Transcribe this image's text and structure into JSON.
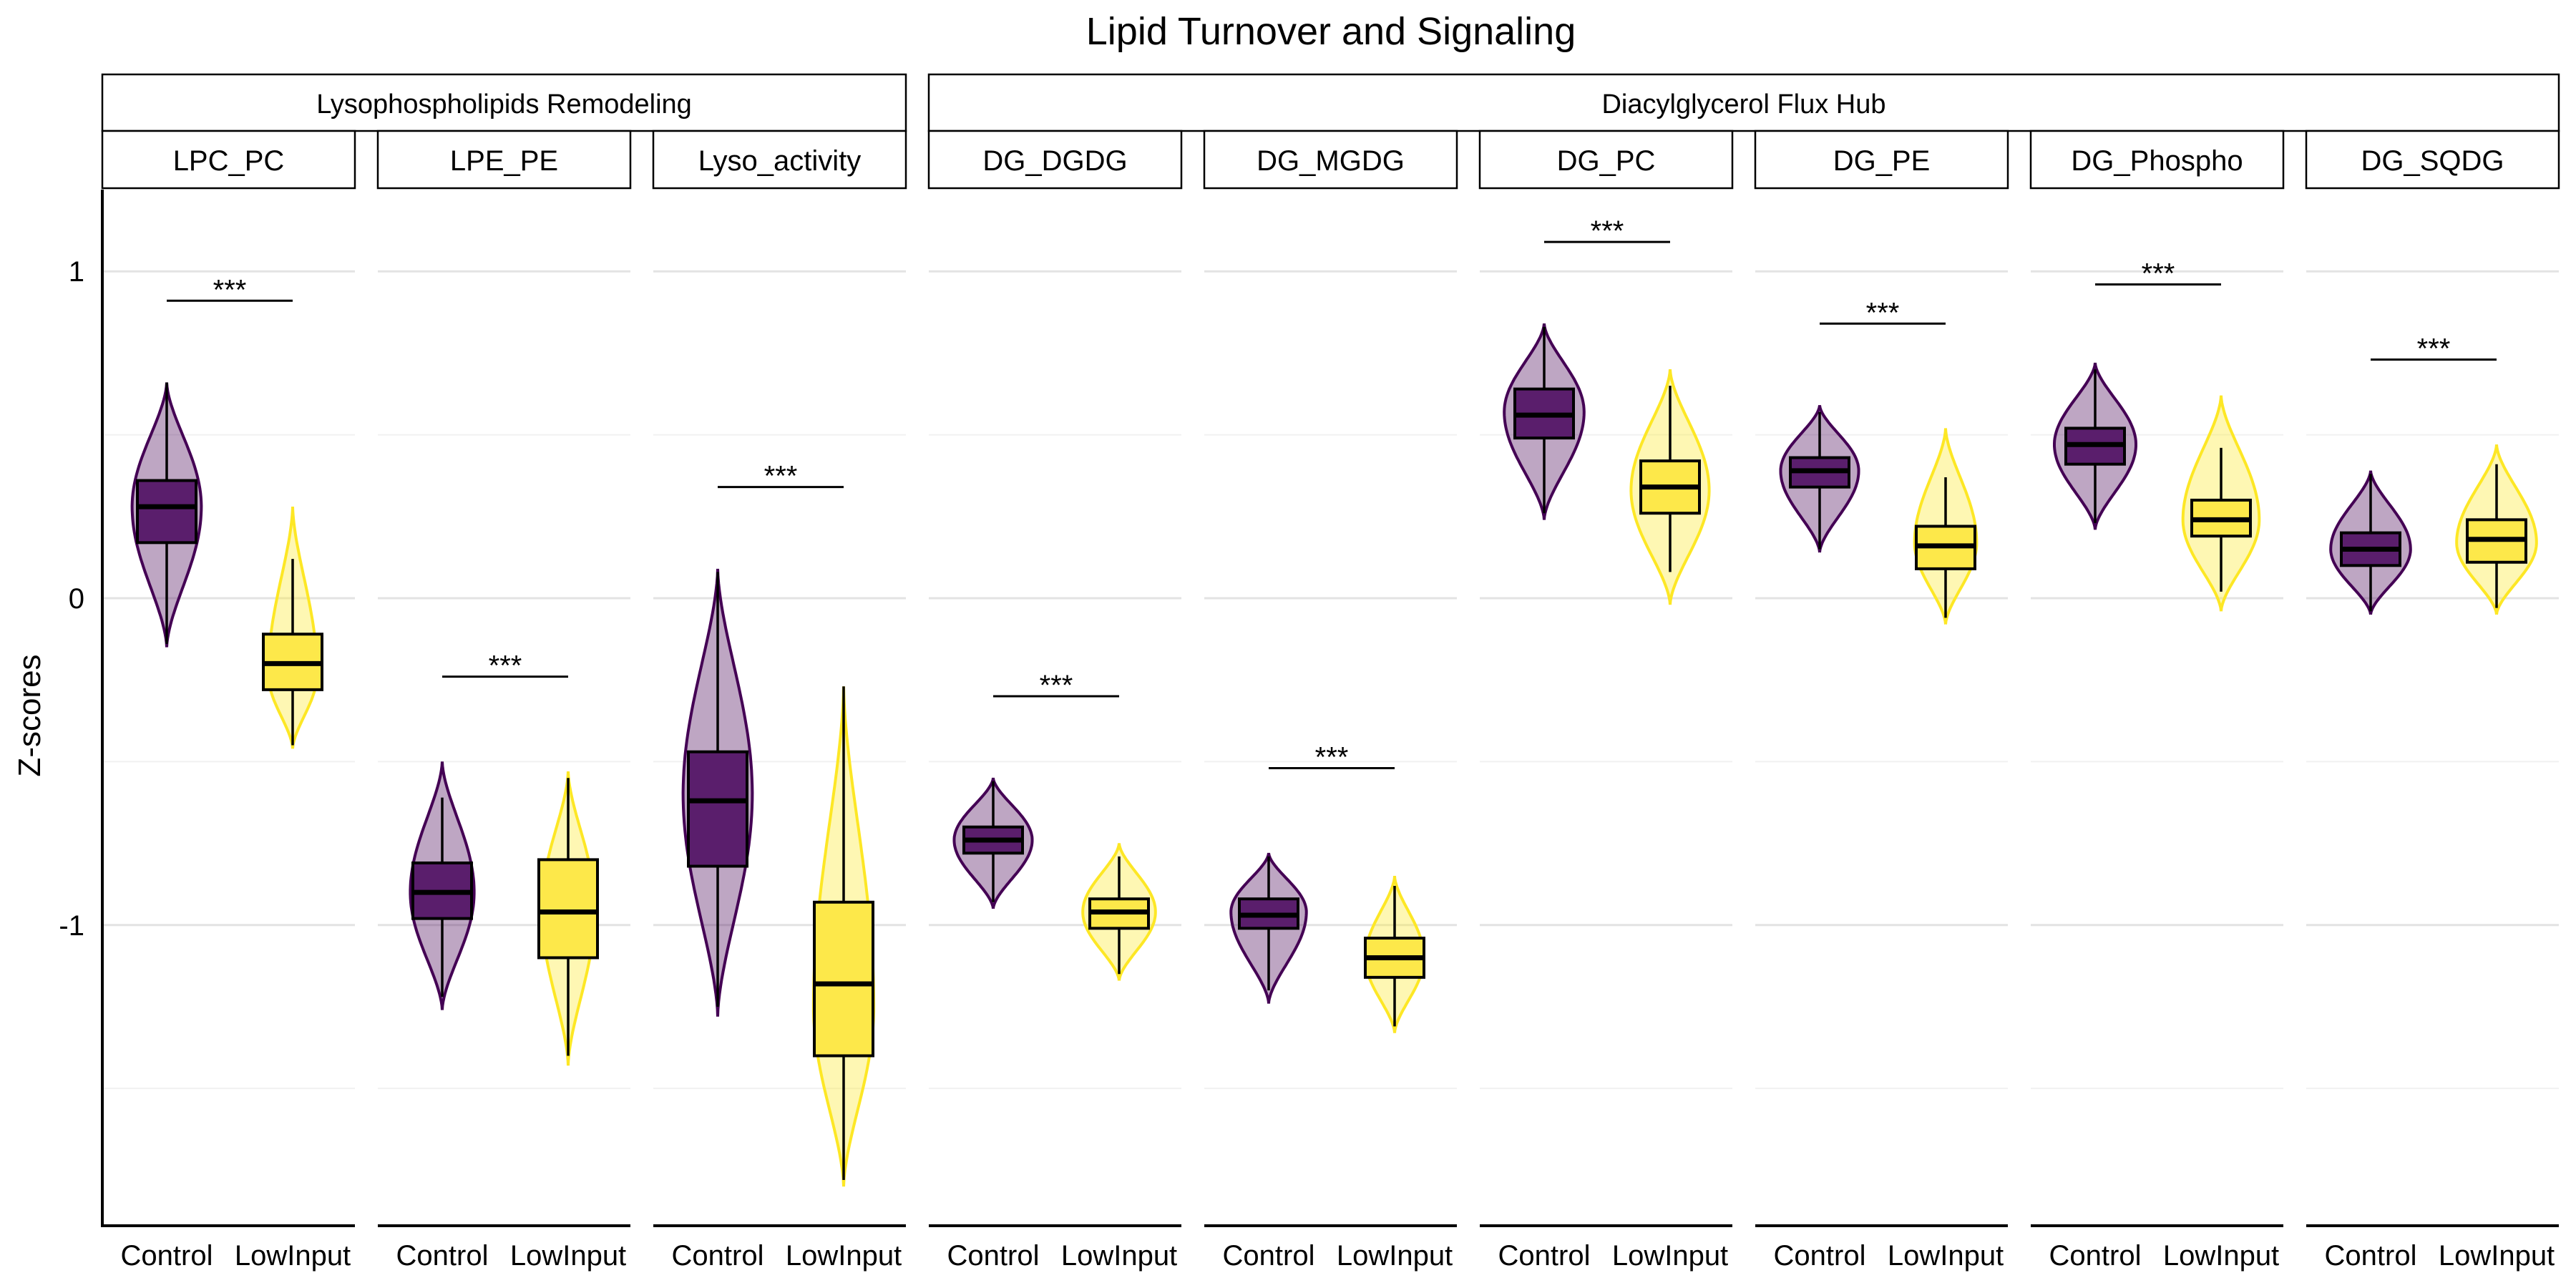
{
  "chart_data": {
    "type": "violin-box",
    "title": "Lipid Turnover and Signaling",
    "ylabel": "Z-scores",
    "xlabel": "",
    "ylim": [
      -1.92,
      1.25
    ],
    "y_ticks": [
      1,
      0,
      -1
    ],
    "y_tick_labels": [
      "1",
      "0",
      "-1"
    ],
    "groups": [
      "Control",
      "LowInput"
    ],
    "colors": {
      "Control": "#440154",
      "LowInput": "#FDE725"
    },
    "box_fill": {
      "Control": "#5A1E6C",
      "LowInput": "#FDE84A"
    },
    "significance_label": "***",
    "strips": [
      {
        "label": "Lysophospholipids Remodeling",
        "facets": [
          0,
          2
        ]
      },
      {
        "label": "Diacylglycerol Flux Hub",
        "facets": [
          3,
          8
        ]
      }
    ],
    "facets": [
      {
        "name": "LPC_PC",
        "sig_y": 0.91,
        "groups": [
          {
            "group": "Control",
            "min": -0.14,
            "q1": 0.17,
            "median": 0.28,
            "q3": 0.36,
            "max": 0.66,
            "vmin": -0.15,
            "vmax": 0.66,
            "peak": 0.28,
            "width": 0.78
          },
          {
            "group": "LowInput",
            "min": -0.45,
            "q1": -0.28,
            "median": -0.2,
            "q3": -0.11,
            "max": 0.12,
            "vmin": -0.46,
            "vmax": 0.28,
            "peak": -0.23,
            "width": 0.55
          }
        ]
      },
      {
        "name": "LPE_PE",
        "sig_y": -0.24,
        "groups": [
          {
            "group": "Control",
            "min": -1.22,
            "q1": -0.98,
            "median": -0.9,
            "q3": -0.81,
            "max": -0.61,
            "vmin": -1.26,
            "vmax": -0.5,
            "peak": -0.9,
            "width": 0.72
          },
          {
            "group": "LowInput",
            "min": -1.4,
            "q1": -1.1,
            "median": -0.96,
            "q3": -0.8,
            "max": -0.55,
            "vmin": -1.43,
            "vmax": -0.53,
            "peak": -0.95,
            "width": 0.6
          }
        ]
      },
      {
        "name": "Lyso_activity",
        "sig_y": 0.34,
        "groups": [
          {
            "group": "Control",
            "min": -1.25,
            "q1": -0.82,
            "median": -0.62,
            "q3": -0.47,
            "max": 0.08,
            "vmin": -1.28,
            "vmax": 0.09,
            "peak": -0.6,
            "width": 0.78
          },
          {
            "group": "LowInput",
            "min": -1.78,
            "q1": -1.4,
            "median": -1.18,
            "q3": -0.93,
            "max": -0.27,
            "vmin": -1.8,
            "vmax": -0.27,
            "peak": -1.25,
            "width": 0.68
          }
        ]
      },
      {
        "name": "DG_DGDG",
        "sig_y": -0.3,
        "groups": [
          {
            "group": "Control",
            "min": -0.93,
            "q1": -0.78,
            "median": -0.74,
            "q3": -0.7,
            "max": -0.56,
            "vmin": -0.95,
            "vmax": -0.55,
            "peak": -0.74,
            "width": 0.88
          },
          {
            "group": "LowInput",
            "min": -1.15,
            "q1": -1.01,
            "median": -0.96,
            "q3": -0.92,
            "max": -0.79,
            "vmin": -1.17,
            "vmax": -0.75,
            "peak": -0.96,
            "width": 0.82
          }
        ]
      },
      {
        "name": "DG_MGDG",
        "sig_y": -0.52,
        "groups": [
          {
            "group": "Control",
            "min": -1.2,
            "q1": -1.01,
            "median": -0.97,
            "q3": -0.92,
            "max": -0.79,
            "vmin": -1.24,
            "vmax": -0.78,
            "peak": -0.96,
            "width": 0.85
          },
          {
            "group": "LowInput",
            "min": -1.31,
            "q1": -1.16,
            "median": -1.1,
            "q3": -1.04,
            "max": -0.88,
            "vmin": -1.33,
            "vmax": -0.85,
            "peak": -1.1,
            "width": 0.66
          }
        ]
      },
      {
        "name": "DG_PC",
        "sig_y": 1.09,
        "groups": [
          {
            "group": "Control",
            "min": 0.26,
            "q1": 0.49,
            "median": 0.56,
            "q3": 0.64,
            "max": 0.83,
            "vmin": 0.24,
            "vmax": 0.84,
            "peak": 0.57,
            "width": 0.9
          },
          {
            "group": "LowInput",
            "min": 0.08,
            "q1": 0.26,
            "median": 0.34,
            "q3": 0.42,
            "max": 0.65,
            "vmin": -0.02,
            "vmax": 0.7,
            "peak": 0.33,
            "width": 0.88
          }
        ]
      },
      {
        "name": "DG_PE",
        "sig_y": 0.84,
        "groups": [
          {
            "group": "Control",
            "min": 0.15,
            "q1": 0.34,
            "median": 0.39,
            "q3": 0.43,
            "max": 0.57,
            "vmin": 0.14,
            "vmax": 0.59,
            "peak": 0.39,
            "width": 0.88
          },
          {
            "group": "LowInput",
            "min": -0.06,
            "q1": 0.09,
            "median": 0.16,
            "q3": 0.22,
            "max": 0.37,
            "vmin": -0.08,
            "vmax": 0.52,
            "peak": 0.17,
            "width": 0.7
          }
        ]
      },
      {
        "name": "DG_Phospho",
        "sig_y": 0.96,
        "groups": [
          {
            "group": "Control",
            "min": 0.23,
            "q1": 0.41,
            "median": 0.47,
            "q3": 0.52,
            "max": 0.7,
            "vmin": 0.21,
            "vmax": 0.72,
            "peak": 0.47,
            "width": 0.92
          },
          {
            "group": "LowInput",
            "min": 0.02,
            "q1": 0.19,
            "median": 0.24,
            "q3": 0.3,
            "max": 0.46,
            "vmin": -0.04,
            "vmax": 0.62,
            "peak": 0.24,
            "width": 0.86
          }
        ]
      },
      {
        "name": "DG_SQDG",
        "sig_y": 0.73,
        "groups": [
          {
            "group": "Control",
            "min": -0.04,
            "q1": 0.1,
            "median": 0.15,
            "q3": 0.2,
            "max": 0.38,
            "vmin": -0.05,
            "vmax": 0.39,
            "peak": 0.15,
            "width": 0.9
          },
          {
            "group": "LowInput",
            "min": -0.03,
            "q1": 0.11,
            "median": 0.18,
            "q3": 0.24,
            "max": 0.41,
            "vmin": -0.05,
            "vmax": 0.47,
            "peak": 0.17,
            "width": 0.9
          }
        ]
      }
    ]
  }
}
